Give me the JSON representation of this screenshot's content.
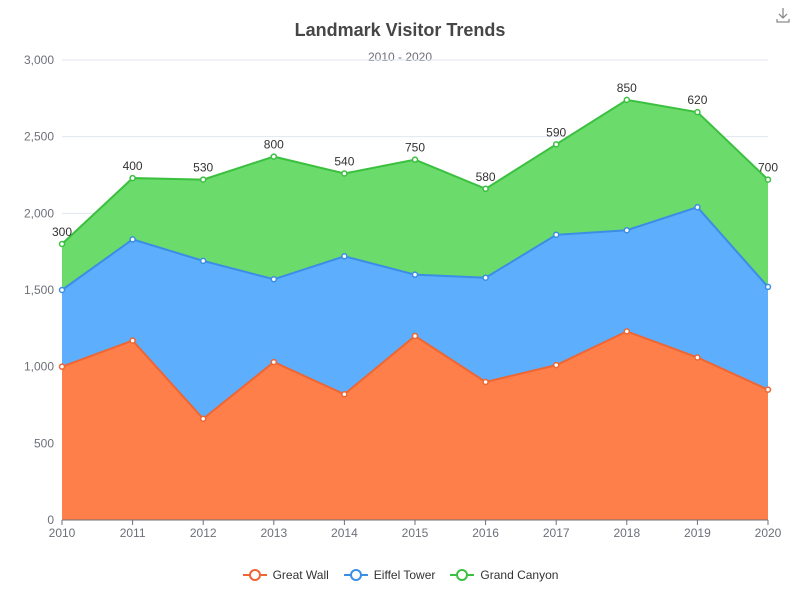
{
  "chart_data": {
    "type": "area",
    "stacked": true,
    "title": "Landmark Visitor Trends",
    "subtitle": "2010 - 2020",
    "categories": [
      "2010",
      "2011",
      "2012",
      "2013",
      "2014",
      "2015",
      "2016",
      "2017",
      "2018",
      "2019",
      "2020"
    ],
    "ylim": [
      0,
      3000
    ],
    "yticks": [
      0,
      500,
      1000,
      1500,
      2000,
      2500,
      3000
    ],
    "ytick_labels": [
      "0",
      "500",
      "1,000",
      "1,500",
      "2,000",
      "2,500",
      "3,000"
    ],
    "grid": true,
    "legend_position": "bottom-center",
    "series": [
      {
        "name": "Great Wall",
        "color": "#ee6632",
        "fill": "#ff7f4a",
        "values": [
          1000,
          1170,
          660,
          1030,
          820,
          1200,
          900,
          1010,
          1230,
          1060,
          850
        ]
      },
      {
        "name": "Eiffel Tower",
        "color": "#3a8ee6",
        "fill": "#5daefc",
        "values": [
          500,
          660,
          1030,
          540,
          900,
          400,
          680,
          850,
          660,
          980,
          670
        ]
      },
      {
        "name": "Grand Canyon",
        "color": "#3bc040",
        "fill": "#6bdb6b",
        "values": [
          300,
          400,
          530,
          800,
          540,
          750,
          580,
          590,
          850,
          620,
          700
        ],
        "labels": [
          "300",
          "400",
          "530",
          "800",
          "540",
          "750",
          "580",
          "590",
          "850",
          "620",
          "700"
        ]
      }
    ]
  },
  "toolbar": {
    "download_icon": "download-icon"
  }
}
